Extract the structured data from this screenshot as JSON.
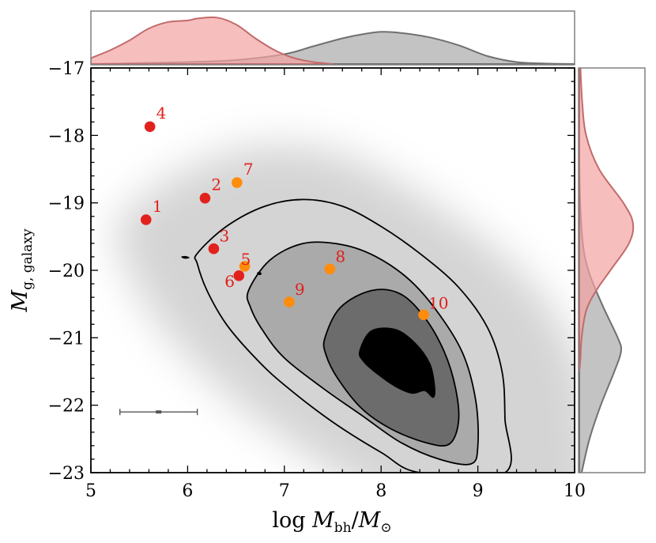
{
  "chart_data": {
    "type": "scatter",
    "title": "",
    "xlabel": {
      "prefix": "log ",
      "m1": "M",
      "s1": "bh",
      "slash": "/",
      "m2": "M",
      "s2": "⊙"
    },
    "ylabel": {
      "m": "M",
      "sub": "g, galaxy"
    },
    "xlim": [
      5,
      10
    ],
    "ylim": [
      -23,
      -17
    ],
    "y_inverted": true,
    "x_ticks": [
      {
        "value": 5,
        "label": "5"
      },
      {
        "value": 6,
        "label": "6"
      },
      {
        "value": 7,
        "label": "7"
      },
      {
        "value": 8,
        "label": "8"
      },
      {
        "value": 9,
        "label": "9"
      },
      {
        "value": 10,
        "label": "10"
      }
    ],
    "y_ticks": [
      {
        "value": -17,
        "label": "−17"
      },
      {
        "value": -18,
        "label": "−18"
      },
      {
        "value": -19,
        "label": "−19"
      },
      {
        "value": -20,
        "label": "−20"
      },
      {
        "value": -21,
        "label": "−21"
      },
      {
        "value": -22,
        "label": "−22"
      },
      {
        "value": -23,
        "label": "−23"
      }
    ],
    "colors": {
      "red_points": "#e3211c",
      "orange_points": "#ff8c0a",
      "label_color": "#e0201a",
      "red_kde_fill": "#f4a3a3",
      "red_kde_line": "#c26b6b",
      "gray_kde_fill": "#bcbcbc",
      "gray_kde_line": "#707070",
      "contour_levels": [
        "#d4d4d4",
        "#aaaaaa",
        "#6c6c6c",
        "#000000"
      ],
      "scatter_cloud": "#000000"
    },
    "points": [
      {
        "label": "1",
        "x": 5.57,
        "y": -19.25,
        "color": "red"
      },
      {
        "label": "2",
        "x": 6.18,
        "y": -18.93,
        "color": "red"
      },
      {
        "label": "3",
        "x": 6.27,
        "y": -19.68,
        "color": "red"
      },
      {
        "label": "4",
        "x": 5.61,
        "y": -17.87,
        "color": "red"
      },
      {
        "label": "5",
        "x": 6.59,
        "y": -19.94,
        "color": "orange"
      },
      {
        "label": "6",
        "x": 6.53,
        "y": -20.08,
        "color": "red"
      },
      {
        "label": "7",
        "x": 6.51,
        "y": -18.7,
        "color": "orange"
      },
      {
        "label": "8",
        "x": 7.47,
        "y": -19.98,
        "color": "orange"
      },
      {
        "label": "9",
        "x": 7.05,
        "y": -20.47,
        "color": "orange"
      },
      {
        "label": "10",
        "x": 8.44,
        "y": -20.66,
        "color": "orange"
      }
    ],
    "typical_error": {
      "x": 5.7,
      "y": -22.1,
      "xerr": 0.4
    },
    "contours": [
      {
        "level": 1,
        "polygon": [
          [
            6.1,
            -19.75
          ],
          [
            6.4,
            -19.35
          ],
          [
            6.8,
            -19.05
          ],
          [
            7.2,
            -18.95
          ],
          [
            7.6,
            -19.05
          ],
          [
            8.0,
            -19.35
          ],
          [
            8.4,
            -19.75
          ],
          [
            8.8,
            -20.25
          ],
          [
            9.1,
            -20.85
          ],
          [
            9.25,
            -21.5
          ],
          [
            9.28,
            -22.2
          ],
          [
            9.28,
            -23.0
          ],
          [
            8.4,
            -23.0
          ],
          [
            8.0,
            -22.7
          ],
          [
            7.5,
            -22.25
          ],
          [
            7.0,
            -21.7
          ],
          [
            6.7,
            -21.3
          ],
          [
            6.4,
            -20.8
          ],
          [
            6.2,
            -20.3
          ],
          [
            6.1,
            -19.9
          ]
        ]
      },
      {
        "level": 2,
        "polygon": [
          [
            6.63,
            -20.3
          ],
          [
            6.85,
            -19.85
          ],
          [
            7.2,
            -19.6
          ],
          [
            7.6,
            -19.62
          ],
          [
            7.95,
            -19.8
          ],
          [
            8.3,
            -20.15
          ],
          [
            8.6,
            -20.65
          ],
          [
            8.85,
            -21.25
          ],
          [
            8.98,
            -21.95
          ],
          [
            9.0,
            -22.6
          ],
          [
            8.93,
            -22.87
          ],
          [
            8.6,
            -22.8
          ],
          [
            8.2,
            -22.55
          ],
          [
            7.8,
            -22.15
          ],
          [
            7.4,
            -21.75
          ],
          [
            7.0,
            -21.3
          ],
          [
            6.78,
            -20.9
          ],
          [
            6.65,
            -20.55
          ]
        ]
      },
      {
        "level": 3,
        "polygon": [
          [
            7.42,
            -21.0
          ],
          [
            7.58,
            -20.55
          ],
          [
            7.9,
            -20.3
          ],
          [
            8.2,
            -20.35
          ],
          [
            8.45,
            -20.7
          ],
          [
            8.65,
            -21.2
          ],
          [
            8.77,
            -21.75
          ],
          [
            8.8,
            -22.25
          ],
          [
            8.7,
            -22.58
          ],
          [
            8.45,
            -22.55
          ],
          [
            8.1,
            -22.35
          ],
          [
            7.8,
            -22.05
          ],
          [
            7.55,
            -21.6
          ],
          [
            7.43,
            -21.25
          ]
        ]
      },
      {
        "level": 4,
        "polygon": [
          [
            7.78,
            -21.2
          ],
          [
            7.9,
            -20.9
          ],
          [
            8.15,
            -20.88
          ],
          [
            8.35,
            -21.08
          ],
          [
            8.5,
            -21.38
          ],
          [
            8.55,
            -21.7
          ],
          [
            8.54,
            -21.88
          ],
          [
            8.45,
            -21.78
          ],
          [
            8.32,
            -21.82
          ],
          [
            8.15,
            -21.72
          ],
          [
            7.95,
            -21.52
          ],
          [
            7.82,
            -21.35
          ]
        ]
      }
    ],
    "marginal_x": {
      "red": [
        [
          5.0,
          0.12
        ],
        [
          5.2,
          0.28
        ],
        [
          5.4,
          0.48
        ],
        [
          5.6,
          0.72
        ],
        [
          5.8,
          0.85
        ],
        [
          6.0,
          0.88
        ],
        [
          6.1,
          0.92
        ],
        [
          6.3,
          0.94
        ],
        [
          6.5,
          0.8
        ],
        [
          6.7,
          0.52
        ],
        [
          6.9,
          0.28
        ],
        [
          7.1,
          0.12
        ],
        [
          7.3,
          0.04
        ],
        [
          7.5,
          0.0
        ]
      ],
      "gray": [
        [
          5.0,
          0.0
        ],
        [
          5.5,
          0.02
        ],
        [
          6.0,
          0.04
        ],
        [
          6.5,
          0.08
        ],
        [
          7.0,
          0.2
        ],
        [
          7.3,
          0.36
        ],
        [
          7.6,
          0.52
        ],
        [
          7.8,
          0.6
        ],
        [
          8.0,
          0.65
        ],
        [
          8.2,
          0.63
        ],
        [
          8.5,
          0.54
        ],
        [
          8.8,
          0.38
        ],
        [
          9.1,
          0.16
        ],
        [
          9.4,
          0.04
        ],
        [
          9.7,
          0.01
        ],
        [
          10.0,
          0.0
        ]
      ]
    },
    "marginal_y": {
      "red": [
        [
          -17.0,
          0.02
        ],
        [
          -17.5,
          0.05
        ],
        [
          -18.0,
          0.12
        ],
        [
          -18.5,
          0.35
        ],
        [
          -19.0,
          0.78
        ],
        [
          -19.3,
          0.95
        ],
        [
          -19.6,
          0.88
        ],
        [
          -20.0,
          0.55
        ],
        [
          -20.3,
          0.3
        ],
        [
          -20.6,
          0.12
        ],
        [
          -21.0,
          0.04
        ],
        [
          -21.3,
          0.02
        ],
        [
          -21.5,
          0.0
        ]
      ],
      "gray": [
        [
          -17.0,
          0.0
        ],
        [
          -18.5,
          0.0
        ],
        [
          -19.5,
          0.05
        ],
        [
          -20.0,
          0.16
        ],
        [
          -20.5,
          0.4
        ],
        [
          -21.0,
          0.68
        ],
        [
          -21.2,
          0.74
        ],
        [
          -21.5,
          0.62
        ],
        [
          -22.0,
          0.38
        ],
        [
          -22.5,
          0.18
        ],
        [
          -23.0,
          0.04
        ]
      ]
    }
  }
}
